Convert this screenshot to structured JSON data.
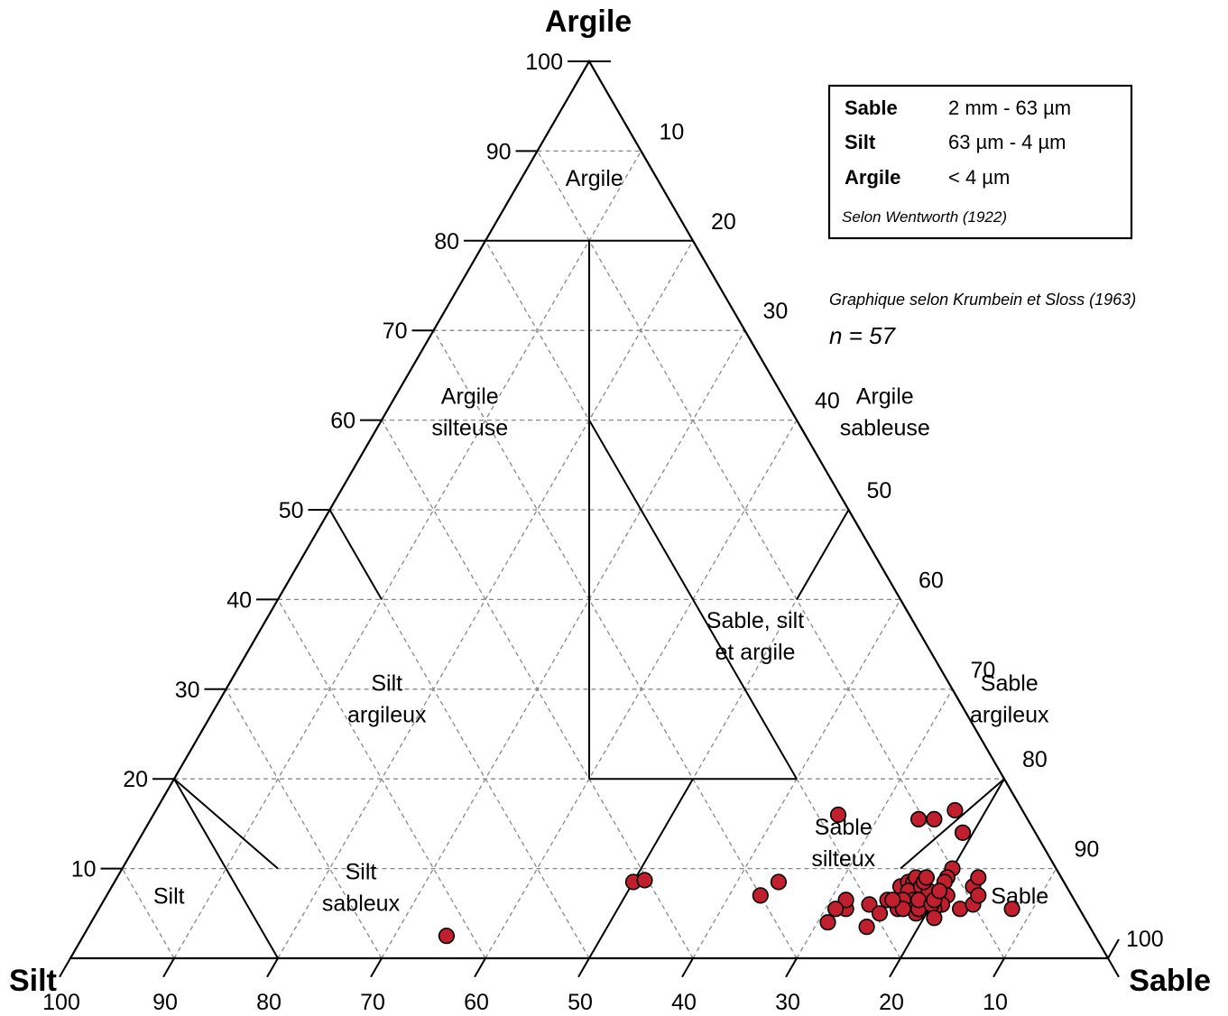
{
  "chart_data": {
    "type": "scatter",
    "subtype": "ternary",
    "axes": {
      "clay": {
        "label": "Argile",
        "ticks": [
          "10",
          "20",
          "30",
          "40",
          "50",
          "60",
          "70",
          "80",
          "90",
          "100"
        ]
      },
      "silt": {
        "label": "Silt",
        "ticks": [
          "100",
          "90",
          "80",
          "70",
          "60",
          "50",
          "40",
          "30",
          "20",
          "10"
        ]
      },
      "sand": {
        "label": "Sable",
        "ticks": [
          "10",
          "20",
          "30",
          "40",
          "50",
          "60",
          "70",
          "80",
          "90",
          "100"
        ]
      }
    },
    "regions": [
      {
        "name": "argile",
        "lines": [
          "Argile"
        ],
        "clay": 87,
        "sand": 7
      },
      {
        "name": "argile-silteuse",
        "lines": [
          "Argile",
          "silteuse"
        ],
        "clay": 61,
        "sand": 8
      },
      {
        "name": "argile-sableuse",
        "lines": [
          "Argile",
          "sableuse"
        ],
        "clay": 61,
        "sand": 48
      },
      {
        "name": "sable-silt-argile",
        "lines": [
          "Sable, silt",
          "et argile"
        ],
        "clay": 36,
        "sand": 48
      },
      {
        "name": "silt-argileux",
        "lines": [
          "Silt",
          "argileux"
        ],
        "clay": 29,
        "sand": 16
      },
      {
        "name": "sable-argileux",
        "lines": [
          "Sable",
          "argileux"
        ],
        "clay": 29,
        "sand": 76
      },
      {
        "name": "silt",
        "lines": [
          "Silt"
        ],
        "clay": 7,
        "sand": 6
      },
      {
        "name": "silt-sableux",
        "lines": [
          "Silt",
          "sableux"
        ],
        "clay": 8,
        "sand": 24
      },
      {
        "name": "sable-silteux",
        "lines": [
          "Sable",
          "silteux"
        ],
        "clay": 13,
        "sand": 68
      },
      {
        "name": "sable",
        "lines": [
          "Sable"
        ],
        "clay": 7,
        "sand": 88
      }
    ],
    "points": [
      {
        "clay": 2.5,
        "sand": 35
      },
      {
        "clay": 8.5,
        "sand": 50
      },
      {
        "clay": 8.7,
        "sand": 51
      },
      {
        "clay": 7.0,
        "sand": 63
      },
      {
        "clay": 8.5,
        "sand": 64
      },
      {
        "clay": 16.0,
        "sand": 66
      },
      {
        "clay": 15.5,
        "sand": 74
      },
      {
        "clay": 15.5,
        "sand": 75.5
      },
      {
        "clay": 16.5,
        "sand": 77
      },
      {
        "clay": 14.0,
        "sand": 79
      },
      {
        "clay": 10.0,
        "sand": 80
      },
      {
        "clay": 9.0,
        "sand": 80
      },
      {
        "clay": 8.5,
        "sand": 80
      },
      {
        "clay": 7.0,
        "sand": 79
      },
      {
        "clay": 6.5,
        "sand": 80
      },
      {
        "clay": 5.5,
        "sand": 77
      },
      {
        "clay": 8.0,
        "sand": 76
      },
      {
        "clay": 8.5,
        "sand": 76.5
      },
      {
        "clay": 8.5,
        "sand": 77
      },
      {
        "clay": 9.0,
        "sand": 77
      },
      {
        "clay": 7.5,
        "sand": 77
      },
      {
        "clay": 8.0,
        "sand": 78
      },
      {
        "clay": 6.0,
        "sand": 78
      },
      {
        "clay": 6.5,
        "sand": 78
      },
      {
        "clay": 5.0,
        "sand": 79
      },
      {
        "clay": 6.5,
        "sand": 79
      },
      {
        "clay": 7.0,
        "sand": 81
      },
      {
        "clay": 6.0,
        "sand": 81
      },
      {
        "clay": 5.5,
        "sand": 79
      },
      {
        "clay": 7.5,
        "sand": 79
      },
      {
        "clay": 8.5,
        "sand": 78
      },
      {
        "clay": 6.0,
        "sand": 74
      },
      {
        "clay": 6.5,
        "sand": 75.5
      },
      {
        "clay": 5.0,
        "sand": 75.5
      },
      {
        "clay": 6.5,
        "sand": 77
      },
      {
        "clay": 5.5,
        "sand": 77.5
      },
      {
        "clay": 9.0,
        "sand": 78
      },
      {
        "clay": 5.5,
        "sand": 79
      },
      {
        "clay": 6.5,
        "sand": 78.5
      },
      {
        "clay": 5.5,
        "sand": 80.5
      },
      {
        "clay": 6.0,
        "sand": 80
      },
      {
        "clay": 4.5,
        "sand": 81
      },
      {
        "clay": 6.5,
        "sand": 80
      },
      {
        "clay": 7.5,
        "sand": 80
      },
      {
        "clay": 3.5,
        "sand": 75
      },
      {
        "clay": 4.0,
        "sand": 71
      },
      {
        "clay": 5.5,
        "sand": 72
      },
      {
        "clay": 6.5,
        "sand": 71.5
      },
      {
        "clay": 5.5,
        "sand": 71
      },
      {
        "clay": 8.0,
        "sand": 83
      },
      {
        "clay": 9.0,
        "sand": 83
      },
      {
        "clay": 5.5,
        "sand": 83
      },
      {
        "clay": 6.0,
        "sand": 84
      },
      {
        "clay": 7.0,
        "sand": 84
      },
      {
        "clay": 5.5,
        "sand": 88
      },
      {
        "clay": 9.0,
        "sand": 78
      },
      {
        "clay": 6.5,
        "sand": 76
      }
    ]
  },
  "legend": {
    "rows": [
      {
        "name": "Sable",
        "value": "2 mm - 63 µm"
      },
      {
        "name": "Silt",
        "value": "63 µm - 4 µm"
      },
      {
        "name": "Argile",
        "value": "< 4 µm"
      }
    ],
    "source": "Selon Wentworth (1922)"
  },
  "credit": "Graphique selon Krumbein et Sloss (1963)",
  "count": "n = 57",
  "colors": {
    "point_fill": "#c0202e",
    "grid": "#888888",
    "line": "#000000"
  }
}
